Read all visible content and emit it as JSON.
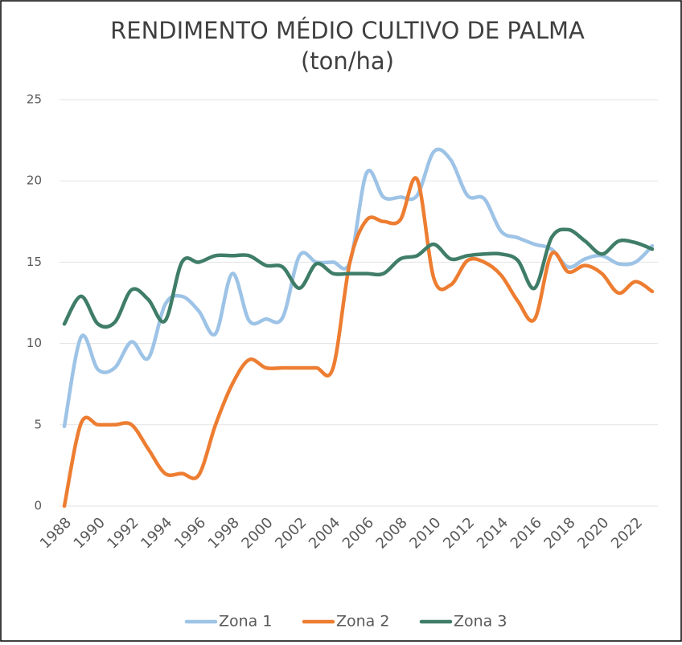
{
  "chart_data": {
    "type": "line",
    "title": "RENDIMENTO MÉDIO CULTIVO DE PALMA",
    "subtitle": "(ton/ha)",
    "x": [
      1988,
      1989,
      1990,
      1991,
      1992,
      1993,
      1994,
      1995,
      1996,
      1997,
      1998,
      1999,
      2000,
      2001,
      2002,
      2003,
      2004,
      2005,
      2006,
      2007,
      2008,
      2009,
      2010,
      2011,
      2012,
      2013,
      2014,
      2015,
      2016,
      2017,
      2018,
      2019,
      2020,
      2021,
      2022,
      2023
    ],
    "series": [
      {
        "name": "Zona 1",
        "color": "#9dc3e6",
        "values": [
          4.9,
          10.4,
          8.4,
          8.5,
          10.1,
          9.1,
          12.4,
          12.9,
          12.0,
          10.6,
          14.3,
          11.4,
          11.5,
          11.6,
          15.4,
          15.0,
          15.0,
          15.0,
          20.5,
          19.0,
          19.0,
          19.1,
          21.8,
          21.3,
          19.1,
          18.9,
          16.9,
          16.5,
          16.1,
          15.8,
          14.7,
          15.2,
          15.4,
          14.9,
          15.0,
          16.0
        ]
      },
      {
        "name": "Zona 2",
        "color": "#ed7d31",
        "values": [
          0,
          5.1,
          5.0,
          5.0,
          5.0,
          3.5,
          2.0,
          2.0,
          1.9,
          5.0,
          7.5,
          9.0,
          8.5,
          8.5,
          8.5,
          8.5,
          8.5,
          15.0,
          17.6,
          17.5,
          17.6,
          20.1,
          14.0,
          13.6,
          15.1,
          15.0,
          14.2,
          12.6,
          11.5,
          15.5,
          14.4,
          14.8,
          14.3,
          13.1,
          13.8,
          13.2
        ]
      },
      {
        "name": "Zona 3",
        "color": "#3f7d68",
        "values": [
          11.2,
          12.9,
          11.2,
          11.3,
          13.3,
          12.7,
          11.4,
          15.0,
          15.0,
          15.4,
          15.4,
          15.4,
          14.8,
          14.7,
          13.4,
          14.9,
          14.3,
          14.3,
          14.3,
          14.3,
          15.2,
          15.4,
          16.1,
          15.2,
          15.4,
          15.5,
          15.5,
          15.1,
          13.4,
          16.5,
          17.0,
          16.3,
          15.5,
          16.3,
          16.2,
          15.8
        ]
      }
    ],
    "xlim": [
      1988,
      2023
    ],
    "xticks": [
      1988,
      1990,
      1992,
      1994,
      1996,
      1998,
      2000,
      2002,
      2004,
      2006,
      2008,
      2010,
      2012,
      2014,
      2016,
      2018,
      2020,
      2022
    ],
    "ylim": [
      0,
      25
    ],
    "yticks": [
      0,
      5,
      10,
      15,
      20,
      25
    ],
    "grid": true,
    "legend": "bottom"
  }
}
